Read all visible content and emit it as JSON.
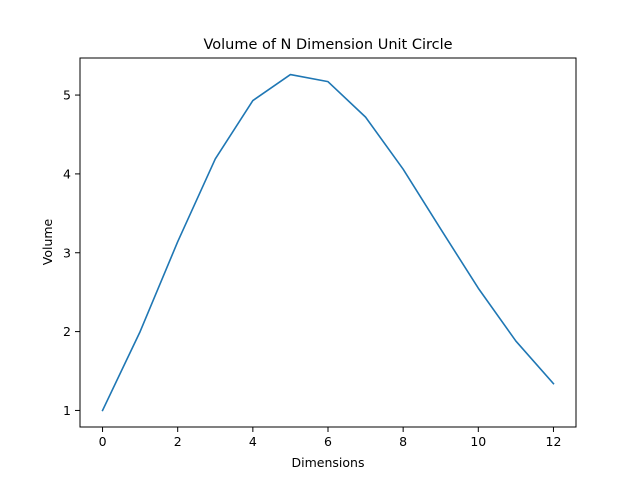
{
  "chart_data": {
    "type": "line",
    "title": "Volume of N Dimension Unit Circle",
    "xlabel": "Dimensions",
    "ylabel": "Volume",
    "x": [
      0,
      1,
      2,
      3,
      4,
      5,
      6,
      7,
      8,
      9,
      10,
      11,
      12
    ],
    "series": [
      {
        "values": [
          1.0,
          2.0,
          3.14,
          4.19,
          4.93,
          5.26,
          5.17,
          4.72,
          4.06,
          3.3,
          2.55,
          1.88,
          1.34
        ],
        "color": "#1f77b4"
      }
    ],
    "xlim": [
      -0.6,
      12.6
    ],
    "ylim": [
      0.79,
      5.47
    ],
    "xticks": [
      0,
      2,
      4,
      6,
      8,
      10,
      12
    ],
    "yticks": [
      1,
      2,
      3,
      4,
      5
    ],
    "xtick_labels": [
      "0",
      "2",
      "4",
      "6",
      "8",
      "10",
      "12"
    ],
    "ytick_labels": [
      "1",
      "2",
      "3",
      "4",
      "5"
    ],
    "grid": false,
    "legend": "none"
  }
}
